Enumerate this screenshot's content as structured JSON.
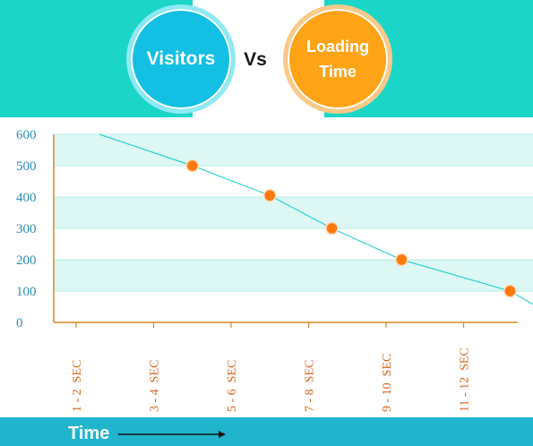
{
  "header": {
    "left_badge": "Visitors",
    "vs": "Vs",
    "right_badge": "Loading\nTime"
  },
  "footer": {
    "label": "Time"
  },
  "colors": {
    "header_bg": "#1bd6c6",
    "visitors_badge": "#14bfe4",
    "loading_badge": "#ffa417",
    "line": "#2fd4cc",
    "marker": "#ff7a0f",
    "band": "#dcf7f4",
    "axis": "#d98a2a",
    "footer_bg": "#20b5cc"
  },
  "chart_data": {
    "type": "line",
    "ylim": [
      0,
      600
    ],
    "yticks": [
      0,
      100,
      200,
      300,
      400,
      500,
      600
    ],
    "categories": [
      "1 - 2  SEC",
      "3 - 4  SEC",
      "5 - 6  SEC",
      "7 - 8  SEC",
      "9 - 10  SEC",
      "11 - 12  SEC"
    ],
    "line": [
      {
        "x": 0.3,
        "y": 600
      },
      {
        "x": 1.5,
        "y": 500
      },
      {
        "x": 2.5,
        "y": 405
      },
      {
        "x": 3.3,
        "y": 300
      },
      {
        "x": 4.2,
        "y": 200
      },
      {
        "x": 5.6,
        "y": 100
      },
      {
        "x": 6.3,
        "y": 0
      }
    ],
    "markers": [
      {
        "x": 1.5,
        "y": 500
      },
      {
        "x": 2.5,
        "y": 405
      },
      {
        "x": 3.3,
        "y": 300
      },
      {
        "x": 4.2,
        "y": 200
      },
      {
        "x": 5.6,
        "y": 100
      }
    ],
    "xlabel": "Time",
    "grid": "horizontal bands"
  }
}
